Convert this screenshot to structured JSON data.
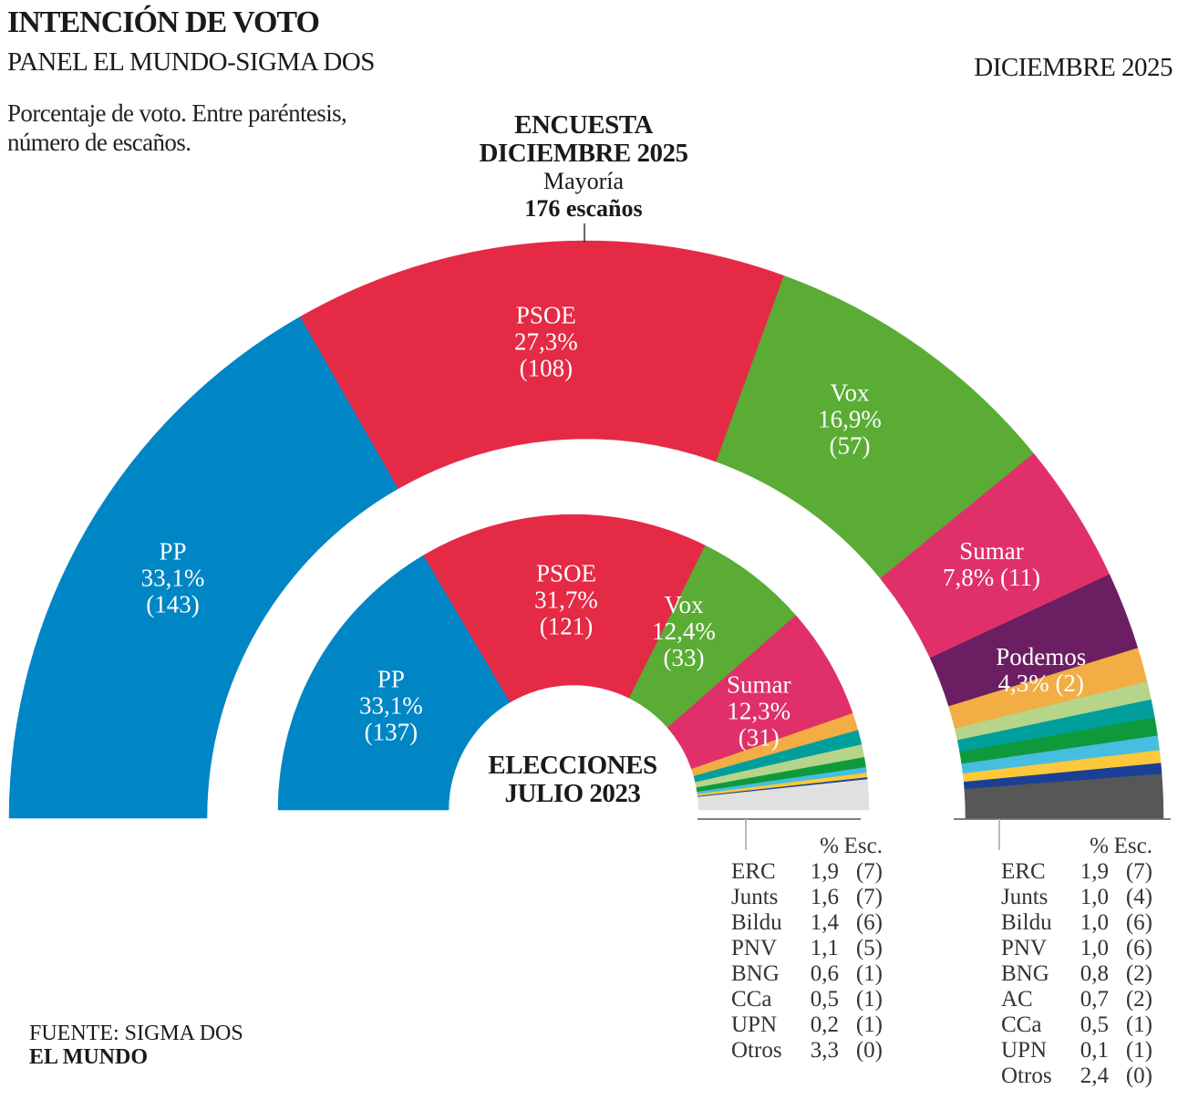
{
  "header": {
    "title": "INTENCIÓN DE VOTO",
    "subtitle": "PANEL EL MUNDO-SIGMA DOS",
    "date": "DICIEMBRE 2025",
    "note_line1": "Porcentaje de voto. Entre paréntesis,",
    "note_line2": "número de escaños."
  },
  "outer_heading": {
    "line1": "ENCUESTA",
    "line2": "DICIEMBRE 2025",
    "majority_label": "Mayoría",
    "majority_value": "176 escaños"
  },
  "inner_heading": {
    "line1": "ELECCIONES",
    "line2": "JULIO 2023"
  },
  "table_header": {
    "pct": "%",
    "seats": "Esc."
  },
  "source": {
    "label": "FUENTE:",
    "value": "SIGMA DOS",
    "brand": "EL MUNDO"
  },
  "chart_data": [
    {
      "type": "pie",
      "variant": "half-donut",
      "ring": "outer",
      "title": "ENCUESTA DICIEMBRE 2025",
      "majority_seats": 176,
      "series": [
        {
          "name": "PP",
          "pct": 33.1,
          "seats": 143,
          "color": "#0086c5",
          "label": true
        },
        {
          "name": "PSOE",
          "pct": 27.3,
          "seats": 108,
          "color": "#e52a45",
          "label": true
        },
        {
          "name": "Vox",
          "pct": 16.9,
          "seats": 57,
          "color": "#5aac35",
          "label": true
        },
        {
          "name": "Sumar",
          "pct": 7.8,
          "seats": 11,
          "color": "#e0306a",
          "label": true
        },
        {
          "name": "Podemos",
          "pct": 4.3,
          "seats": 2,
          "color": "#6b1f62",
          "label": true
        },
        {
          "name": "ERC",
          "pct": 1.9,
          "seats": 7,
          "color": "#f2ad44"
        },
        {
          "name": "Junts",
          "pct": 1.0,
          "seats": 4,
          "color": "#b5d58a"
        },
        {
          "name": "Bildu",
          "pct": 1.0,
          "seats": 6,
          "color": "#009f9b"
        },
        {
          "name": "PNV",
          "pct": 1.0,
          "seats": 6,
          "color": "#0e9a3c"
        },
        {
          "name": "BNG",
          "pct": 0.8,
          "seats": 2,
          "color": "#47bde0"
        },
        {
          "name": "AC",
          "pct": 0.7,
          "seats": 2,
          "color": "#fbc93a"
        },
        {
          "name": "CCa",
          "pct": 0.5,
          "seats": 1,
          "color": "#1b3f94"
        },
        {
          "name": "UPN",
          "pct": 0.1,
          "seats": 1,
          "color": "#1b3f94"
        },
        {
          "name": "Otros",
          "pct": 2.4,
          "seats": 0,
          "color": "#575757"
        }
      ]
    },
    {
      "type": "pie",
      "variant": "half-donut",
      "ring": "inner",
      "title": "ELECCIONES JULIO 2023",
      "series": [
        {
          "name": "PP",
          "pct": 33.1,
          "seats": 137,
          "color": "#0086c5",
          "label": true
        },
        {
          "name": "PSOE",
          "pct": 31.7,
          "seats": 121,
          "color": "#e52a45",
          "label": true
        },
        {
          "name": "Vox",
          "pct": 12.4,
          "seats": 33,
          "color": "#5aac35",
          "label": true
        },
        {
          "name": "Sumar",
          "pct": 12.3,
          "seats": 31,
          "color": "#e0306a",
          "label": true
        },
        {
          "name": "ERC",
          "pct": 1.9,
          "seats": 7,
          "color": "#f2ad44"
        },
        {
          "name": "Junts",
          "pct": 1.6,
          "seats": 7,
          "color": "#009f9b"
        },
        {
          "name": "Bildu",
          "pct": 1.4,
          "seats": 6,
          "color": "#b5d58a"
        },
        {
          "name": "PNV",
          "pct": 1.1,
          "seats": 5,
          "color": "#0e9a3c"
        },
        {
          "name": "BNG",
          "pct": 0.6,
          "seats": 1,
          "color": "#47bde0"
        },
        {
          "name": "CCa",
          "pct": 0.5,
          "seats": 1,
          "color": "#fbc93a"
        },
        {
          "name": "UPN",
          "pct": 0.2,
          "seats": 1,
          "color": "#1b3f94"
        },
        {
          "name": "Otros",
          "pct": 3.3,
          "seats": 0,
          "color": "#e0e0e0"
        }
      ]
    }
  ],
  "labels": {
    "outer": [
      {
        "name": "PP",
        "lines": [
          "PP",
          "33,1%",
          "(143)"
        ]
      },
      {
        "name": "PSOE",
        "lines": [
          "PSOE",
          "27,3%",
          "(108)"
        ]
      },
      {
        "name": "Vox",
        "lines": [
          "Vox",
          "16,9%",
          "(57)"
        ]
      },
      {
        "name": "Sumar",
        "lines": [
          "Sumar",
          "7,8% (11)"
        ]
      },
      {
        "name": "Podemos",
        "lines": [
          "Podemos",
          "4,3% (2)"
        ]
      }
    ],
    "inner": [
      {
        "name": "PP",
        "lines": [
          "PP",
          "33,1%",
          "(137)"
        ]
      },
      {
        "name": "PSOE",
        "lines": [
          "PSOE",
          "31,7%",
          "(121)"
        ]
      },
      {
        "name": "Vox",
        "lines": [
          "Vox",
          "12,4%",
          "(33)"
        ]
      },
      {
        "name": "Sumar",
        "lines": [
          "Sumar",
          "12,3%",
          "(31)"
        ]
      }
    ]
  },
  "tables": {
    "inner": [
      {
        "party": "ERC",
        "pct": "1,9",
        "seats": "(7)"
      },
      {
        "party": "Junts",
        "pct": "1,6",
        "seats": "(7)"
      },
      {
        "party": "Bildu",
        "pct": "1,4",
        "seats": "(6)"
      },
      {
        "party": "PNV",
        "pct": "1,1",
        "seats": "(5)"
      },
      {
        "party": "BNG",
        "pct": "0,6",
        "seats": "(1)"
      },
      {
        "party": "CCa",
        "pct": "0,5",
        "seats": "(1)"
      },
      {
        "party": "UPN",
        "pct": "0,2",
        "seats": "(1)"
      },
      {
        "party": "Otros",
        "pct": "3,3",
        "seats": "(0)"
      }
    ],
    "outer": [
      {
        "party": "ERC",
        "pct": "1,9",
        "seats": "(7)"
      },
      {
        "party": "Junts",
        "pct": "1,0",
        "seats": "(4)"
      },
      {
        "party": "Bildu",
        "pct": "1,0",
        "seats": "(6)"
      },
      {
        "party": "PNV",
        "pct": "1,0",
        "seats": "(6)"
      },
      {
        "party": "BNG",
        "pct": "0,8",
        "seats": "(2)"
      },
      {
        "party": "AC",
        "pct": "0,7",
        "seats": "(2)"
      },
      {
        "party": "CCa",
        "pct": "0,5",
        "seats": "(1)"
      },
      {
        "party": "UPN",
        "pct": "0,1",
        "seats": "(1)"
      },
      {
        "party": "Otros",
        "pct": "2,4",
        "seats": "(0)"
      }
    ]
  }
}
